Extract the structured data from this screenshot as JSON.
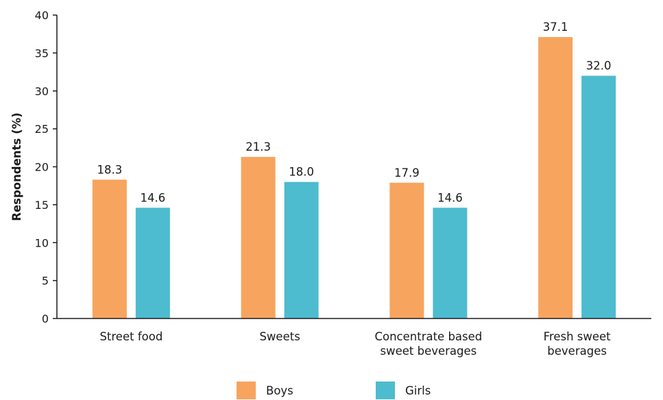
{
  "chart_data": {
    "type": "bar",
    "categories": [
      [
        "Street food"
      ],
      [
        "Sweets"
      ],
      [
        "Concentrate based",
        "sweet beverages"
      ],
      [
        "Fresh sweet",
        "beverages"
      ]
    ],
    "series": [
      {
        "name": "Boys",
        "values": [
          18.3,
          21.3,
          17.9,
          37.1
        ],
        "color": "#F7A45E"
      },
      {
        "name": "Girls",
        "values": [
          14.6,
          18.0,
          14.6,
          32.0
        ],
        "color": "#4DBCCE"
      }
    ],
    "ylabel": "Respondents (%)",
    "xlabel": "",
    "ylim": [
      0,
      40
    ],
    "yticks": [
      0,
      5,
      10,
      15,
      20,
      25,
      30,
      35,
      40
    ],
    "grid": false,
    "legend": "bottom",
    "axis_color": "#1a1a1a"
  }
}
